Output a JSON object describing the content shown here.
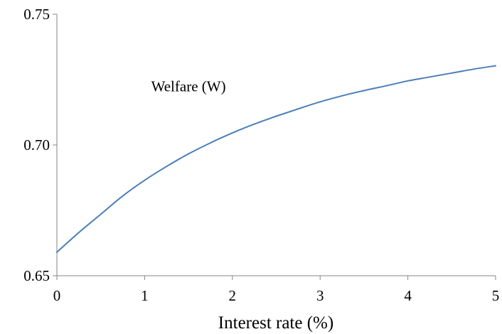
{
  "chart_data": {
    "type": "line",
    "title": "",
    "xlabel": "Interest rate (%)",
    "ylabel": "",
    "xlim": [
      0,
      5
    ],
    "ylim": [
      0.65,
      0.75
    ],
    "x_ticks": [
      0,
      1,
      2,
      3,
      4,
      5
    ],
    "x_tick_labels": [
      "0",
      "1",
      "2",
      "3",
      "4",
      "5"
    ],
    "y_ticks": [
      0.65,
      0.7,
      0.75
    ],
    "y_tick_labels": [
      "0.65",
      "0.70",
      "0.75"
    ],
    "grid": false,
    "legend": "none",
    "annotations": [
      {
        "text": "Welfare (W)",
        "x": 1.5,
        "y": 0.7205
      }
    ],
    "series": [
      {
        "color": "#4a7ebb",
        "x": [
          0,
          0.25,
          0.5,
          0.75,
          1,
          1.25,
          1.5,
          1.75,
          2,
          2.25,
          2.5,
          2.75,
          3,
          3.25,
          3.5,
          3.75,
          4,
          4.25,
          4.5,
          4.75,
          5
        ],
        "y": [
          0.659,
          0.6665,
          0.6735,
          0.6805,
          0.6865,
          0.6918,
          0.6966,
          0.7008,
          0.7046,
          0.708,
          0.711,
          0.7138,
          0.7165,
          0.7188,
          0.7208,
          0.7226,
          0.7245,
          0.726,
          0.7275,
          0.729,
          0.7303
        ]
      }
    ]
  }
}
